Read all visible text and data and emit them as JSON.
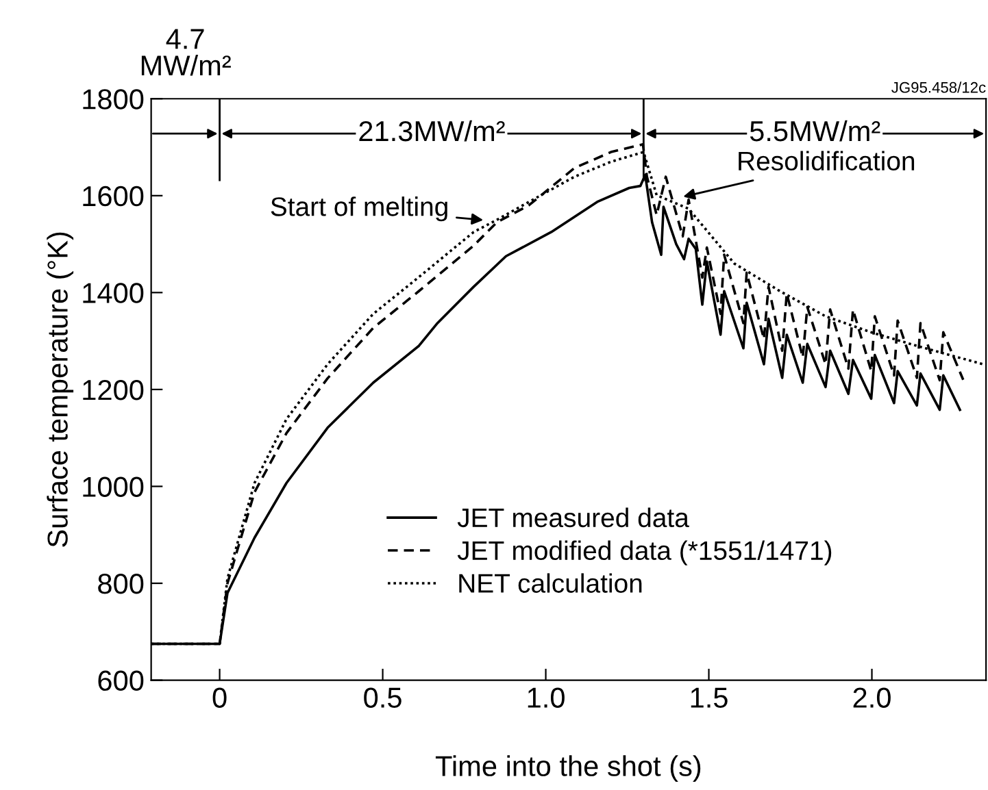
{
  "chart_data": {
    "type": "line",
    "xlabel": "Time into the shot (s)",
    "ylabel": "Surface temperature (°K)",
    "xlim": [
      -0.21,
      2.35
    ],
    "ylim": [
      600,
      1800
    ],
    "xticks": [
      0,
      0.5,
      {
        "value": 1,
        "label": "1.0"
      },
      {
        "value": 1.5,
        "label": "1.5"
      },
      {
        "value": 2,
        "label": "2.0"
      }
    ],
    "yticks": [
      600,
      800,
      1000,
      1200,
      1400,
      1600,
      1800
    ],
    "grid": false,
    "legend": "bottom",
    "marker": "none",
    "series": [
      {
        "name": "JET measured data",
        "color": "#000000",
        "line_style": "solid",
        "x": [
          -0.21,
          0,
          0.024,
          0.107,
          0.205,
          0.331,
          0.471,
          0.611,
          0.668,
          0.779,
          0.878,
          1.017,
          1.16,
          1.256,
          1.29,
          1.305,
          1.326,
          1.354,
          1.361,
          1.4,
          1.424,
          1.438,
          1.46,
          1.48,
          1.494,
          1.536,
          1.547,
          1.606,
          1.616,
          1.669,
          1.683,
          1.725,
          1.739,
          1.788,
          1.802,
          1.858,
          1.872,
          1.928,
          1.942,
          1.998,
          2.009,
          2.068,
          2.079,
          2.138,
          2.149,
          2.208,
          2.219,
          2.27
        ],
        "values": [
          675,
          675,
          780,
          894,
          1007,
          1121,
          1214,
          1290,
          1337,
          1412,
          1475,
          1525,
          1588,
          1616,
          1620,
          1643,
          1545,
          1478,
          1577,
          1500,
          1469,
          1511,
          1490,
          1375,
          1464,
          1313,
          1403,
          1285,
          1379,
          1252,
          1346,
          1224,
          1313,
          1214,
          1294,
          1205,
          1280,
          1191,
          1261,
          1181,
          1271,
          1172,
          1238,
          1167,
          1233,
          1158,
          1229,
          1158
        ]
      },
      {
        "name": "JET modified data (*1551/1471)",
        "color": "#000000",
        "line_style": "dashed",
        "x": [
          -0.21,
          0,
          0.024,
          0.107,
          0.205,
          0.331,
          0.471,
          0.611,
          0.779,
          0.85,
          0.948,
          1.088,
          1.2,
          1.298,
          1.31,
          1.34,
          1.368,
          1.42,
          1.438,
          1.48,
          1.494,
          1.536,
          1.547,
          1.606,
          1.616,
          1.669,
          1.683,
          1.725,
          1.739,
          1.788,
          1.802,
          1.858,
          1.872,
          1.928,
          1.942,
          1.998,
          2.009,
          2.068,
          2.079,
          2.138,
          2.149,
          2.208,
          2.219,
          2.28
        ],
        "values": [
          675,
          675,
          800,
          988,
          1110,
          1223,
          1327,
          1403,
          1497,
          1545,
          1580,
          1657,
          1690,
          1706,
          1640,
          1560,
          1639,
          1516,
          1592,
          1431,
          1493,
          1356,
          1478,
          1337,
          1441,
          1304,
          1412,
          1280,
          1398,
          1266,
          1370,
          1252,
          1365,
          1243,
          1365,
          1238,
          1351,
          1229,
          1342,
          1224,
          1337,
          1219,
          1318,
          1220
        ]
      },
      {
        "name": "NET calculation",
        "color": "#000000",
        "line_style": "dotted",
        "x": [
          -0.21,
          0,
          0.024,
          0.107,
          0.205,
          0.331,
          0.471,
          0.611,
          0.779,
          0.85,
          0.948,
          1.088,
          1.2,
          1.3,
          1.34,
          1.438,
          1.578,
          1.718,
          1.858,
          1.998,
          2.138,
          2.341
        ],
        "values": [
          675,
          675,
          810,
          1007,
          1139,
          1252,
          1356,
          1432,
          1525,
          1550,
          1587,
          1639,
          1670,
          1690,
          1601,
          1573,
          1460,
          1403,
          1351,
          1318,
          1290,
          1252
        ]
      }
    ],
    "ref_lines": [
      {
        "axis": "x",
        "value": 0
      },
      {
        "axis": "x",
        "value": 1.3
      }
    ],
    "annotations": [
      "4.7\nMW/m²",
      "21.3MW/m²",
      "5.5MW/m²",
      {
        "text": "Start of melting",
        "x": 0.82,
        "y": 1549
      },
      {
        "text": "Resolidification",
        "x": 1.41,
        "y": 1596
      },
      "JG95.458/12c"
    ]
  }
}
